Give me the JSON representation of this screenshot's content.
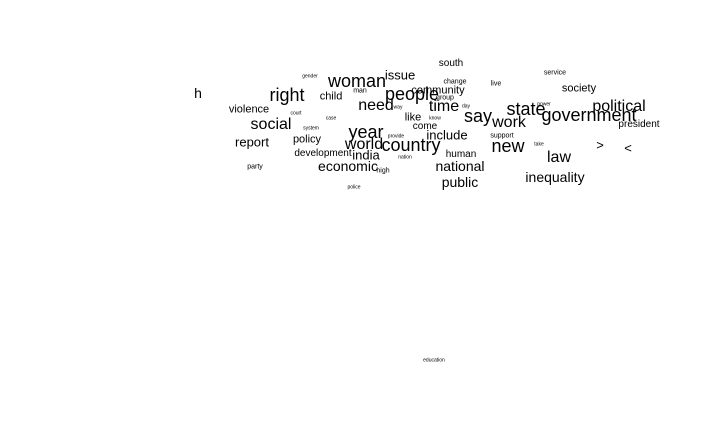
{
  "words": {
    "south": "south",
    "service": "service",
    "gender": "gender",
    "woman": "woman",
    "issue": "issue",
    "change": "change",
    "live": "live",
    "society": "society",
    "h": "h",
    "right": "right",
    "man": "man",
    "community": "community",
    "people": "people",
    "child": "child",
    "group": "group",
    "political": "political",
    "violence": "violence",
    "need": "need",
    "time": "time",
    "state": "state",
    "say": "say",
    "government": "government",
    "court": "court",
    "social": "social",
    "like": "like",
    "work": "work",
    "president": "president",
    "system": "system",
    "year": "year",
    "come": "come",
    "include": "include",
    "support": "support",
    "report": "report",
    "policy": "policy",
    "world": "world",
    "country": "country",
    "new": "new",
    "gt": ">",
    "lt": "<",
    "development": "development",
    "india": "india",
    "human": "human",
    "law": "law",
    "nation": "nation",
    "economic": "economic",
    "national": "national",
    "party": "party",
    "high": "high",
    "inequality": "inequality",
    "public": "public",
    "police": "police",
    "education": "education",
    "take": "take",
    "provide": "provide",
    "way": "way",
    "power": "power",
    "case": "case",
    "know": "know",
    "day": "day"
  }
}
